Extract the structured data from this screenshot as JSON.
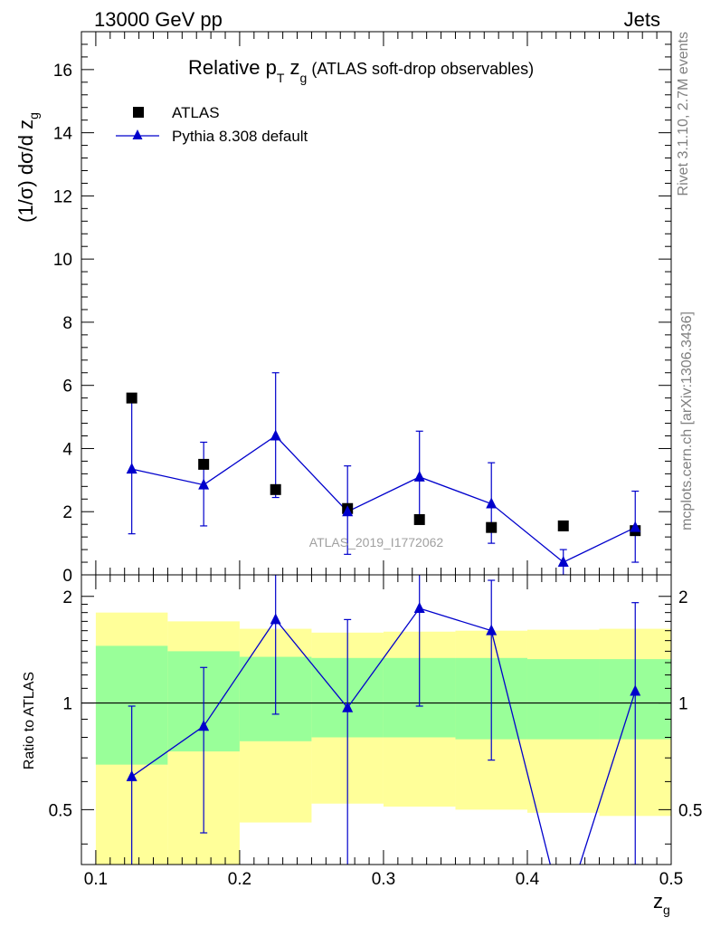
{
  "header": {
    "left": "13000 GeV pp",
    "right": "Jets"
  },
  "title": {
    "main": "Relative p",
    "sub_T": "T",
    "main2": " z",
    "sub_g": "g",
    "paren": " (ATLAS soft-drop observables)"
  },
  "legend": {
    "data_label": "ATLAS",
    "mc_label": "Pythia 8.308 default"
  },
  "side": {
    "rivet": "Rivet 3.1.10,  2.7M events",
    "mcplots": "mcplots.cern.ch [arXiv:1306.3436]"
  },
  "watermark": "ATLAS_2019_I1772062",
  "axes": {
    "ylabel_main": "(1/σ) dσ/d z",
    "ylabel_main_sub": "g",
    "ylabel_ratio": "Ratio to ATLAS",
    "xlabel": "z",
    "xlabel_sub": "g"
  },
  "colors": {
    "data": "#000000",
    "mc": "#0000cc",
    "band_outer": "#ffff99",
    "band_inner": "#99ff99"
  },
  "chart_data": {
    "type": "scatter",
    "xlim": [
      0.09,
      0.5
    ],
    "main": {
      "ylim": [
        0,
        17.2
      ],
      "yticks": [
        0,
        2,
        4,
        6,
        8,
        10,
        12,
        14,
        16
      ],
      "data": {
        "name": "ATLAS",
        "x": [
          0.125,
          0.175,
          0.225,
          0.275,
          0.325,
          0.375,
          0.425,
          0.475
        ],
        "y": [
          5.6,
          3.5,
          2.7,
          2.1,
          1.75,
          1.5,
          1.55,
          1.4
        ]
      },
      "mc": {
        "name": "Pythia 8.308 default",
        "x": [
          0.125,
          0.175,
          0.225,
          0.275,
          0.325,
          0.375,
          0.425,
          0.475
        ],
        "y": [
          3.35,
          2.85,
          4.4,
          2.0,
          3.1,
          2.25,
          0.4,
          1.5
        ],
        "err_low": [
          2.05,
          1.3,
          1.95,
          1.35,
          1.4,
          1.25,
          0.4,
          1.1
        ],
        "err_high": [
          2.2,
          1.35,
          2.0,
          1.45,
          1.45,
          1.3,
          0.4,
          1.15
        ]
      }
    },
    "ratio": {
      "ylim": [
        0.35,
        2.3
      ],
      "yticks": [
        0.5,
        1,
        2
      ],
      "reference": 1,
      "bins": [
        0.1,
        0.15,
        0.2,
        0.25,
        0.3,
        0.35,
        0.4,
        0.45,
        0.5
      ],
      "band_outer_low": [
        0.3,
        0.3,
        0.46,
        0.52,
        0.51,
        0.5,
        0.49,
        0.48
      ],
      "band_outer_high": [
        1.8,
        1.7,
        1.62,
        1.58,
        1.59,
        1.6,
        1.61,
        1.62
      ],
      "band_inner_low": [
        0.67,
        0.73,
        0.78,
        0.8,
        0.8,
        0.79,
        0.79,
        0.79
      ],
      "band_inner_high": [
        1.45,
        1.4,
        1.35,
        1.34,
        1.34,
        1.34,
        1.33,
        1.33
      ],
      "mc": {
        "x": [
          0.125,
          0.175,
          0.225,
          0.275,
          0.325,
          0.375,
          0.425,
          0.475
        ],
        "y": [
          0.62,
          0.86,
          1.72,
          0.97,
          1.85,
          1.6,
          0.25,
          1.08
        ],
        "err_low": [
          0.3,
          0.43,
          0.79,
          0.62,
          0.87,
          0.91,
          0.0,
          0.73
        ],
        "err_high": [
          0.36,
          0.4,
          0.58,
          0.75,
          0.5,
          0.62,
          0.0,
          0.84
        ]
      }
    }
  }
}
